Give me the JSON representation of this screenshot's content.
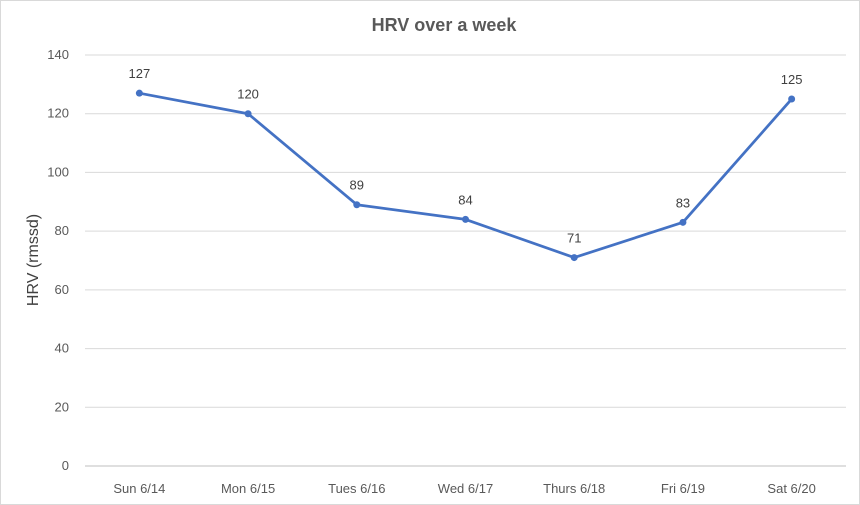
{
  "chart_data": {
    "type": "line",
    "title": "HRV over a week",
    "xlabel": "",
    "ylabel": "HRV (rmssd)",
    "ylim": [
      0,
      140
    ],
    "yticks": [
      0,
      20,
      40,
      60,
      80,
      100,
      120,
      140
    ],
    "grid": true,
    "legend": "none",
    "categories": [
      "Sun 6/14",
      "Mon 6/15",
      "Tues 6/16",
      "Wed 6/17",
      "Thurs 6/18",
      "Fri 6/19",
      "Sat 6/20"
    ],
    "values": [
      127,
      120,
      89,
      84,
      71,
      83,
      125
    ],
    "colors": {
      "line": "#4472c4",
      "grid": "#d9d9d9"
    }
  }
}
